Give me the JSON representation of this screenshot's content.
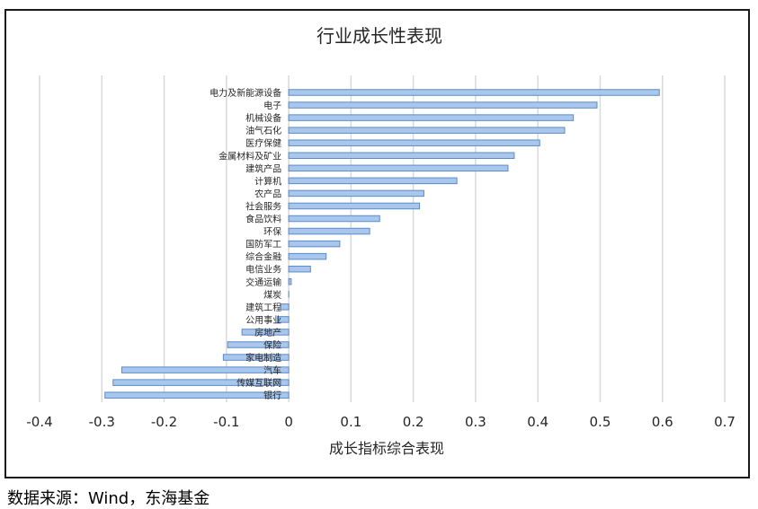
{
  "chart_data": {
    "type": "bar",
    "orientation": "horizontal",
    "title": "行业成长性表现",
    "xlabel": "成长指标综合表现",
    "ylabel": "",
    "xlim": [
      -0.4,
      0.7
    ],
    "xticks": [
      "-0.4",
      "-0.3",
      "-0.2",
      "-0.1",
      "0",
      "0.1",
      "0.2",
      "0.3",
      "0.4",
      "0.5",
      "0.6",
      "0.7"
    ],
    "grid": "vertical",
    "legend": "none",
    "categories": [
      "电力及新能源设备",
      "电子",
      "机械设备",
      "油气石化",
      "医疗保健",
      "金属材料及矿业",
      "建筑产品",
      "计算机",
      "农产品",
      "社会服务",
      "食品饮料",
      "环保",
      "国防军工",
      "综合金融",
      "电信业务",
      "交通运输",
      "煤炭",
      "建筑工程",
      "公用事业",
      "房地产",
      "保险",
      "家电制造",
      "汽车",
      "传媒互联网",
      "银行"
    ],
    "values": [
      0.595,
      0.495,
      0.457,
      0.443,
      0.403,
      0.362,
      0.352,
      0.27,
      0.217,
      0.21,
      0.146,
      0.13,
      0.082,
      0.06,
      0.035,
      0.004,
      0.0,
      -0.013,
      -0.018,
      -0.075,
      -0.098,
      -0.105,
      -0.268,
      -0.282,
      -0.295
    ],
    "colors": {
      "bar_fill": "#a9c7ec",
      "bar_stroke": "#5b8cc9",
      "grid": "#d9d9d9"
    }
  },
  "footer": {
    "source": "数据来源：Wind，东海基金"
  }
}
